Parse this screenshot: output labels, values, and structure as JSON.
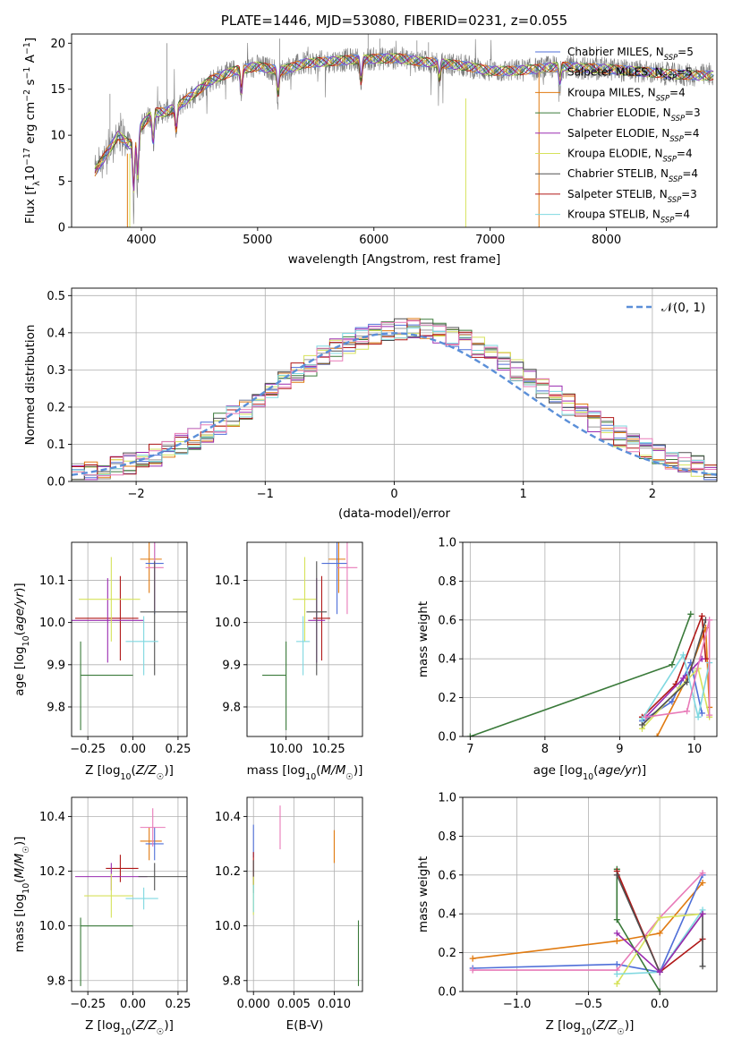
{
  "colors": {
    "Chabrier MILES": "#4f6fd8",
    "Salpeter MILES": "#9a9a9a",
    "Kroupa MILES": "#e07a10",
    "Chabrier ELODIE": "#3a7a3a",
    "Salpeter ELODIE": "#9a2bb0",
    "Kroupa ELODIE": "#d6e25a",
    "Chabrier STELIB": "#505050",
    "Salpeter STELIB": "#b01818",
    "Kroupa STELIB": "#7fd8e0",
    "extra_pink": "#e87ab8",
    "normal_curve": "#5b8fd8"
  },
  "chart_data": [
    {
      "id": "spectrum",
      "type": "line",
      "title": "PLATE=1446, MJD=53080, FIBERID=0231, z=0.055",
      "xlabel": "wavelength [Angstrom, rest frame]",
      "ylabel": "Flux [f_λ10^-17 erg cm^-2 s^-1 A^-1]",
      "xlim": [
        3400,
        8950
      ],
      "ylim": [
        0,
        21
      ],
      "xticks": [
        4000,
        5000,
        6000,
        7000,
        8000
      ],
      "yticks": [
        0,
        5,
        10,
        15,
        20
      ],
      "legend_position": "top-right",
      "legend": [
        {
          "name": "Chabrier MILES",
          "nssp": 5
        },
        {
          "name": "Salpeter MILES",
          "nssp": 5
        },
        {
          "name": "Kroupa MILES",
          "nssp": 4
        },
        {
          "name": "Chabrier ELODIE",
          "nssp": 3
        },
        {
          "name": "Salpeter ELODIE",
          "nssp": 4
        },
        {
          "name": "Kroupa ELODIE",
          "nssp": 4
        },
        {
          "name": "Chabrier STELIB",
          "nssp": 4
        },
        {
          "name": "Salpeter STELIB",
          "nssp": 3
        },
        {
          "name": "Kroupa STELIB",
          "nssp": 4
        }
      ],
      "continuum": {
        "x": [
          3600,
          3700,
          3800,
          3900,
          4000,
          4100,
          4200,
          4300,
          4400,
          4500,
          4600,
          4800,
          5000,
          5200,
          5400,
          5600,
          5800,
          6000,
          6200,
          6400,
          6600,
          6800,
          7000,
          7200,
          7400,
          7600,
          7800,
          8000,
          8200,
          8400,
          8600,
          8800
        ],
        "y": [
          6,
          8,
          10,
          9,
          11,
          12.5,
          12.5,
          13,
          14,
          15,
          16,
          17,
          17.5,
          17,
          17.8,
          18,
          18.2,
          18.3,
          18.4,
          18,
          17.8,
          17.5,
          17,
          17,
          17.2,
          17.5,
          17.3,
          17.2,
          17,
          16.8,
          16.6,
          16.5
        ]
      }
    },
    {
      "id": "residuals",
      "type": "line",
      "xlabel": "(data-model)/error",
      "ylabel": "Normed distribution",
      "xlim": [
        -2.5,
        2.5
      ],
      "ylim": [
        0,
        0.52
      ],
      "xticks": [
        -2,
        -1,
        0,
        1,
        2
      ],
      "yticks": [
        0.0,
        0.1,
        0.2,
        0.3,
        0.4,
        0.5
      ],
      "legend_label": "𝒩(0, 1)",
      "bins": [
        -2.5,
        -2.4,
        -2.3,
        -2.2,
        -2.1,
        -2.0,
        -1.9,
        -1.8,
        -1.7,
        -1.6,
        -1.5,
        -1.4,
        -1.3,
        -1.2,
        -1.1,
        -1.0,
        -0.9,
        -0.8,
        -0.7,
        -0.6,
        -0.5,
        -0.4,
        -0.3,
        -0.2,
        -0.1,
        0.0,
        0.1,
        0.2,
        0.3,
        0.4,
        0.5,
        0.6,
        0.7,
        0.8,
        0.9,
        1.0,
        1.1,
        1.2,
        1.3,
        1.4,
        1.5,
        1.6,
        1.7,
        1.8,
        1.9,
        2.0,
        2.1,
        2.2,
        2.3,
        2.4
      ]
    },
    {
      "id": "age_vs_Z",
      "type": "scatter",
      "xlabel": "Z [log₁₀(Z/Z☉)]",
      "ylabel": "age [log₁₀(age/yr)]",
      "xlim": [
        -0.34,
        0.3
      ],
      "ylim": [
        9.73,
        10.19
      ],
      "xticks": [
        -0.25,
        0.0,
        0.25
      ],
      "yticks": [
        9.8,
        9.9,
        10.0,
        10.1
      ],
      "points": [
        {
          "x": -0.07,
          "y": 10.01,
          "xerr": [
            0.25,
            0.1
          ],
          "yerr": [
            0.1,
            0.1
          ],
          "c": "Salpeter STELIB"
        },
        {
          "x": -0.14,
          "y": 10.005,
          "xerr": [
            0.2,
            0.2
          ],
          "yerr": [
            0.1,
            0.1
          ],
          "c": "Salpeter ELODIE"
        },
        {
          "x": -0.12,
          "y": 10.055,
          "xerr": [
            0.18,
            0.16
          ],
          "yerr": [
            0.1,
            0.1
          ],
          "c": "Kroupa ELODIE"
        },
        {
          "x": 0.09,
          "y": 10.15,
          "xerr": [
            0.05,
            0.07
          ],
          "yerr": [
            0.08,
            0.04
          ],
          "c": "Kroupa MILES"
        },
        {
          "x": 0.12,
          "y": 10.14,
          "xerr": [
            0.05,
            0.05
          ],
          "yerr": [
            0.12,
            0.1
          ],
          "c": "Chabrier MILES"
        },
        {
          "x": 0.12,
          "y": 10.13,
          "xerr": [
            0.05,
            0.05
          ],
          "yerr": [
            0.1,
            0.1
          ],
          "c": "extra_pink"
        },
        {
          "x": 0.12,
          "y": 10.025,
          "xerr": [
            0.08,
            0.18
          ],
          "yerr": [
            0.15,
            0.12
          ],
          "c": "Chabrier STELIB"
        },
        {
          "x": 0.06,
          "y": 9.955,
          "xerr": [
            0.1,
            0.08
          ],
          "yerr": [
            0.08,
            0.06
          ],
          "c": "Kroupa STELIB"
        },
        {
          "x": -0.29,
          "y": 9.875,
          "xerr": [
            0.0,
            0.29
          ],
          "yerr": [
            0.13,
            0.08
          ],
          "c": "Chabrier ELODIE"
        }
      ]
    },
    {
      "id": "age_vs_mass",
      "type": "scatter",
      "xlabel": "mass [log₁₀(M/M☉)]",
      "ylabel": "",
      "xlim": [
        9.77,
        10.45
      ],
      "ylim": [
        9.73,
        10.19
      ],
      "xticks": [
        10.0,
        10.25
      ],
      "yticks": [
        9.8,
        9.9,
        10.0,
        10.1
      ],
      "points": [
        {
          "x": 10.21,
          "y": 10.01,
          "xerr": [
            0.05,
            0.05
          ],
          "yerr": [
            0.1,
            0.1
          ],
          "c": "Salpeter STELIB"
        },
        {
          "x": 10.18,
          "y": 10.005,
          "xerr": [
            0.05,
            0.05
          ],
          "yerr": [
            0.1,
            0.1
          ],
          "c": "Salpeter ELODIE"
        },
        {
          "x": 10.11,
          "y": 10.055,
          "xerr": [
            0.07,
            0.07
          ],
          "yerr": [
            0.1,
            0.1
          ],
          "c": "Kroupa ELODIE"
        },
        {
          "x": 10.31,
          "y": 10.15,
          "xerr": [
            0.06,
            0.04
          ],
          "yerr": [
            0.08,
            0.04
          ],
          "c": "Kroupa MILES"
        },
        {
          "x": 10.3,
          "y": 10.14,
          "xerr": [
            0.09,
            0.06
          ],
          "yerr": [
            0.12,
            0.1
          ],
          "c": "Chabrier MILES"
        },
        {
          "x": 10.36,
          "y": 10.13,
          "xerr": [
            0.06,
            0.06
          ],
          "yerr": [
            0.11,
            0.1
          ],
          "c": "extra_pink"
        },
        {
          "x": 10.18,
          "y": 10.025,
          "xerr": [
            0.06,
            0.06
          ],
          "yerr": [
            0.15,
            0.12
          ],
          "c": "Chabrier STELIB"
        },
        {
          "x": 10.1,
          "y": 9.955,
          "xerr": [
            0.04,
            0.04
          ],
          "yerr": [
            0.08,
            0.06
          ],
          "c": "Kroupa STELIB"
        },
        {
          "x": 10.0,
          "y": 9.875,
          "xerr": [
            0.14,
            0.0
          ],
          "yerr": [
            0.13,
            0.08
          ],
          "c": "Chabrier ELODIE"
        }
      ]
    },
    {
      "id": "massweight_vs_age",
      "type": "line",
      "xlabel": "age [log₁₀(age/yr)]",
      "ylabel": "mass weight",
      "xlim": [
        6.9,
        10.3
      ],
      "ylim": [
        0,
        1.0
      ],
      "xticks": [
        7,
        8,
        9,
        10
      ],
      "yticks": [
        0.0,
        0.2,
        0.4,
        0.6,
        0.8,
        1.0
      ],
      "series": [
        {
          "c": "Chabrier ELODIE",
          "x": [
            7.0,
            9.7,
            9.95
          ],
          "y": [
            0.0,
            0.37,
            0.63
          ]
        },
        {
          "c": "Chabrier MILES",
          "x": [
            9.3,
            9.7,
            9.95,
            10.1
          ],
          "y": [
            0.08,
            0.18,
            0.38,
            0.12
          ]
        },
        {
          "c": "Kroupa MILES",
          "x": [
            9.5,
            9.9,
            10.15,
            10.2
          ],
          "y": [
            0.0,
            0.3,
            0.56,
            0.15
          ]
        },
        {
          "c": "Salpeter STELIB",
          "x": [
            9.3,
            9.75,
            10.1,
            10.15
          ],
          "y": [
            0.1,
            0.27,
            0.62,
            0.4
          ]
        },
        {
          "c": "Kroupa ELODIE",
          "x": [
            9.3,
            9.8,
            10.05,
            10.2
          ],
          "y": [
            0.04,
            0.25,
            0.35,
            0.1
          ]
        },
        {
          "c": "Salpeter ELODIE",
          "x": [
            9.35,
            9.85,
            10.1
          ],
          "y": [
            0.1,
            0.3,
            0.4
          ]
        },
        {
          "c": "Chabrier STELIB",
          "x": [
            9.3,
            9.9,
            10.15
          ],
          "y": [
            0.06,
            0.28,
            0.6
          ]
        },
        {
          "c": "Kroupa STELIB",
          "x": [
            9.3,
            9.85,
            10.05,
            10.2
          ],
          "y": [
            0.09,
            0.42,
            0.1,
            0.38
          ]
        },
        {
          "c": "extra_pink",
          "x": [
            9.35,
            9.9,
            10.2,
            10.2
          ],
          "y": [
            0.1,
            0.13,
            0.6,
            0.11
          ]
        }
      ]
    },
    {
      "id": "mass_vs_Z",
      "type": "scatter",
      "xlabel": "Z [log₁₀(Z/Z☉)]",
      "ylabel": "mass [log₁₀(M/M☉)]",
      "xlim": [
        -0.34,
        0.3
      ],
      "ylim": [
        9.76,
        10.47
      ],
      "xticks": [
        -0.25,
        0.0,
        0.25
      ],
      "yticks": [
        9.8,
        10.0,
        10.2,
        10.4
      ],
      "points": [
        {
          "x": -0.07,
          "y": 10.21,
          "xerr": [
            0.08,
            0.1
          ],
          "yerr": [
            0.05,
            0.05
          ],
          "c": "Salpeter STELIB"
        },
        {
          "x": -0.12,
          "y": 10.18,
          "xerr": [
            0.2,
            0.2
          ],
          "yerr": [
            0.05,
            0.05
          ],
          "c": "Salpeter ELODIE"
        },
        {
          "x": -0.12,
          "y": 10.11,
          "xerr": [
            0.15,
            0.12
          ],
          "yerr": [
            0.08,
            0.08
          ],
          "c": "Kroupa ELODIE"
        },
        {
          "x": 0.09,
          "y": 10.31,
          "xerr": [
            0.05,
            0.07
          ],
          "yerr": [
            0.07,
            0.05
          ],
          "c": "Kroupa MILES"
        },
        {
          "x": 0.12,
          "y": 10.3,
          "xerr": [
            0.05,
            0.05
          ],
          "yerr": [
            0.06,
            0.06
          ],
          "c": "Chabrier MILES"
        },
        {
          "x": 0.11,
          "y": 10.36,
          "xerr": [
            0.07,
            0.07
          ],
          "yerr": [
            0.07,
            0.07
          ],
          "c": "extra_pink"
        },
        {
          "x": 0.12,
          "y": 10.18,
          "xerr": [
            0.09,
            0.18
          ],
          "yerr": [
            0.05,
            0.05
          ],
          "c": "Chabrier STELIB"
        },
        {
          "x": 0.06,
          "y": 10.1,
          "xerr": [
            0.1,
            0.08
          ],
          "yerr": [
            0.04,
            0.04
          ],
          "c": "Kroupa STELIB"
        },
        {
          "x": -0.29,
          "y": 10.0,
          "xerr": [
            0.0,
            0.29
          ],
          "yerr": [
            0.22,
            0.03
          ],
          "c": "Chabrier ELODIE"
        }
      ]
    },
    {
      "id": "mass_vs_EBV",
      "type": "scatter",
      "xlabel": "E(B-V)",
      "ylabel": "",
      "xlim": [
        -0.0008,
        0.0135
      ],
      "ylim": [
        9.76,
        10.47
      ],
      "xticks": [
        0.0,
        0.005,
        0.01
      ],
      "xticklabels": [
        "0.000",
        "0.005",
        "0.010"
      ],
      "yticks": [
        9.8,
        10.0,
        10.2,
        10.4
      ],
      "points": [
        {
          "x": 0.0,
          "y": 10.31,
          "yerr": [
            0.06,
            0.06
          ],
          "c": "Chabrier MILES"
        },
        {
          "x": 0.0,
          "y": 10.21,
          "yerr": [
            0.06,
            0.06
          ],
          "c": "Salpeter STELIB"
        },
        {
          "x": 0.0,
          "y": 10.18,
          "yerr": [
            0.06,
            0.06
          ],
          "c": "Chabrier STELIB"
        },
        {
          "x": 0.0,
          "y": 10.11,
          "yerr": [
            0.07,
            0.07
          ],
          "c": "Kroupa ELODIE"
        },
        {
          "x": 0.0,
          "y": 10.1,
          "yerr": [
            0.05,
            0.05
          ],
          "c": "Kroupa STELIB"
        },
        {
          "x": 0.0033,
          "y": 10.36,
          "yerr": [
            0.08,
            0.08
          ],
          "c": "extra_pink"
        },
        {
          "x": 0.01,
          "y": 10.29,
          "yerr": [
            0.06,
            0.06
          ],
          "c": "Kroupa MILES"
        },
        {
          "x": 0.013,
          "y": 9.9,
          "yerr": [
            0.12,
            0.12
          ],
          "c": "Chabrier ELODIE"
        }
      ]
    },
    {
      "id": "massweight_vs_Z",
      "type": "line",
      "xlabel": "Z [log₁₀(Z/Z☉)]",
      "ylabel": "mass weight",
      "xlim": [
        -1.38,
        0.4
      ],
      "ylim": [
        0,
        1.0
      ],
      "xticks": [
        -1.0,
        -0.5,
        0.0
      ],
      "yticks": [
        0.0,
        0.2,
        0.4,
        0.6,
        0.8,
        1.0
      ],
      "series": [
        {
          "c": "Kroupa MILES",
          "x": [
            -1.31,
            -0.3,
            0.0,
            0.3
          ],
          "y": [
            0.17,
            0.26,
            0.3,
            0.56
          ]
        },
        {
          "c": "Chabrier MILES",
          "x": [
            -1.31,
            -0.3,
            0.0,
            0.3
          ],
          "y": [
            0.12,
            0.14,
            0.1,
            0.6
          ]
        },
        {
          "c": "extra_pink",
          "x": [
            -1.31,
            -0.3,
            0.0,
            0.3
          ],
          "y": [
            0.11,
            0.11,
            0.38,
            0.61
          ]
        },
        {
          "c": "Chabrier ELODIE",
          "x": [
            -0.3,
            -0.3,
            0.0
          ],
          "y": [
            0.63,
            0.37,
            0.0
          ]
        },
        {
          "c": "Salpeter STELIB",
          "x": [
            -0.3,
            0.0,
            0.3
          ],
          "y": [
            0.62,
            0.1,
            0.27
          ]
        },
        {
          "c": "Kroupa ELODIE",
          "x": [
            -0.3,
            0.0,
            0.3
          ],
          "y": [
            0.04,
            0.38,
            0.4
          ]
        },
        {
          "c": "Chabrier STELIB",
          "x": [
            -0.3,
            0.0,
            0.3,
            0.3
          ],
          "y": [
            0.6,
            0.1,
            0.4,
            0.13
          ]
        },
        {
          "c": "Kroupa STELIB",
          "x": [
            -0.3,
            0.0,
            0.3
          ],
          "y": [
            0.09,
            0.1,
            0.42
          ]
        },
        {
          "c": "Salpeter ELODIE",
          "x": [
            -0.3,
            0.0,
            0.3
          ],
          "y": [
            0.3,
            0.1,
            0.4
          ]
        }
      ]
    }
  ]
}
